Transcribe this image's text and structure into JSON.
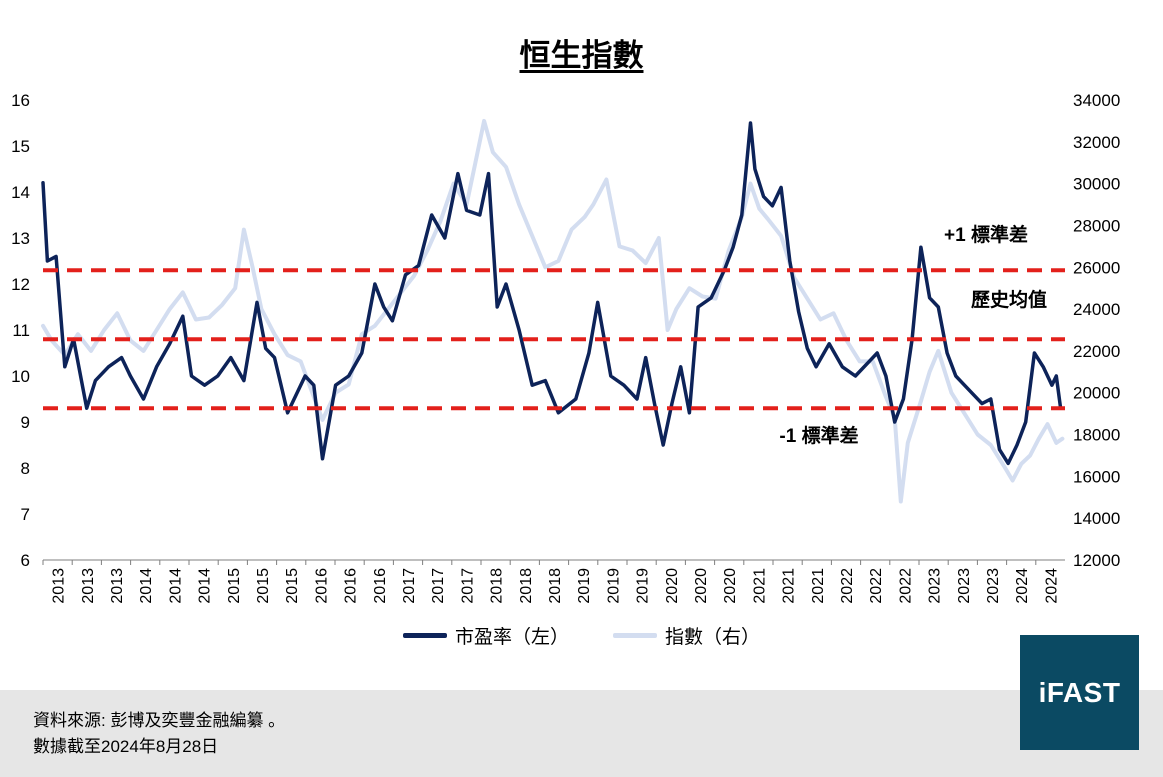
{
  "title": "恒生指數",
  "legend": {
    "pe_label": "市盈率（左）",
    "index_label": "指數（右）"
  },
  "footer": {
    "source": "資料來源: 彭博及奕豐金融編纂 。",
    "date_note": "數據截至2024年8月28日"
  },
  "logo": {
    "text": "iFAST"
  },
  "colors": {
    "pe_line": "#0d2359",
    "index_line": "#d3ddf0",
    "reference_lines": "#e3201b",
    "logo_bg": "#0b4a63"
  },
  "chart_data": {
    "type": "line",
    "title": "恒生指數",
    "x_range": [
      2013.0,
      2024.7
    ],
    "x_tick_labels": [
      "2013",
      "2013",
      "2013",
      "2014",
      "2014",
      "2014",
      "2015",
      "2015",
      "2015",
      "2016",
      "2016",
      "2016",
      "2017",
      "2017",
      "2017",
      "2018",
      "2018",
      "2018",
      "2019",
      "2019",
      "2019",
      "2020",
      "2020",
      "2020",
      "2021",
      "2021",
      "2021",
      "2022",
      "2022",
      "2022",
      "2023",
      "2023",
      "2023",
      "2024",
      "2024"
    ],
    "y_left": {
      "range": [
        6,
        16
      ],
      "ticks": [
        6,
        7,
        8,
        9,
        10,
        11,
        12,
        13,
        14,
        15,
        16
      ]
    },
    "y_right": {
      "range": [
        12000,
        34000
      ],
      "ticks": [
        12000,
        14000,
        16000,
        18000,
        20000,
        22000,
        24000,
        26000,
        28000,
        30000,
        32000,
        34000
      ]
    },
    "grid": false,
    "legend_position": "bottom",
    "reference_lines": [
      {
        "axis": "left",
        "value": 12.3,
        "label": "+1 標準差"
      },
      {
        "axis": "left",
        "value": 10.8,
        "label": "歷史均值"
      },
      {
        "axis": "left",
        "value": 9.3,
        "label": "-1 標準差"
      }
    ],
    "series": [
      {
        "name": "市盈率（左）",
        "axis": "left",
        "x": [
          2013.0,
          2013.05,
          2013.15,
          2013.25,
          2013.35,
          2013.5,
          2013.6,
          2013.75,
          2013.9,
          2014.0,
          2014.15,
          2014.3,
          2014.45,
          2014.6,
          2014.7,
          2014.85,
          2015.0,
          2015.15,
          2015.3,
          2015.45,
          2015.55,
          2015.65,
          2015.8,
          2016.0,
          2016.1,
          2016.2,
          2016.35,
          2016.5,
          2016.65,
          2016.8,
          2016.9,
          2017.0,
          2017.15,
          2017.3,
          2017.45,
          2017.6,
          2017.75,
          2017.85,
          2018.0,
          2018.1,
          2018.2,
          2018.3,
          2018.45,
          2018.6,
          2018.75,
          2018.9,
          2019.1,
          2019.25,
          2019.35,
          2019.5,
          2019.65,
          2019.8,
          2019.9,
          2020.0,
          2020.1,
          2020.2,
          2020.3,
          2020.4,
          2020.5,
          2020.65,
          2020.8,
          2020.9,
          2021.0,
          2021.1,
          2021.15,
          2021.25,
          2021.35,
          2021.45,
          2021.55,
          2021.65,
          2021.75,
          2021.85,
          2022.0,
          2022.15,
          2022.3,
          2022.45,
          2022.55,
          2022.65,
          2022.75,
          2022.85,
          2022.95,
          2023.05,
          2023.15,
          2023.25,
          2023.35,
          2023.45,
          2023.55,
          2023.65,
          2023.75,
          2023.85,
          2023.95,
          2024.05,
          2024.15,
          2024.25,
          2024.35,
          2024.45,
          2024.55,
          2024.6,
          2024.65
        ],
        "y": [
          14.2,
          12.5,
          12.6,
          10.2,
          10.8,
          9.3,
          9.9,
          10.2,
          10.4,
          10.0,
          9.5,
          10.2,
          10.7,
          11.3,
          10.0,
          9.8,
          10.0,
          10.4,
          9.9,
          11.6,
          10.6,
          10.4,
          9.2,
          10.0,
          9.8,
          8.2,
          9.8,
          10.0,
          10.5,
          12.0,
          11.5,
          11.2,
          12.2,
          12.4,
          13.5,
          13.0,
          14.4,
          13.6,
          13.5,
          14.4,
          11.5,
          12.0,
          11.0,
          9.8,
          9.9,
          9.2,
          9.5,
          10.5,
          11.6,
          10.0,
          9.8,
          9.5,
          10.4,
          9.4,
          8.5,
          9.4,
          10.2,
          9.2,
          11.5,
          11.7,
          12.3,
          12.8,
          13.5,
          15.5,
          14.5,
          13.9,
          13.7,
          14.1,
          12.5,
          11.4,
          10.6,
          10.2,
          10.7,
          10.2,
          10.0,
          10.3,
          10.5,
          10.0,
          9.0,
          9.5,
          10.8,
          12.8,
          11.7,
          11.5,
          10.5,
          10.0,
          9.8,
          9.6,
          9.4,
          9.5,
          8.4,
          8.1,
          8.5,
          9.0,
          10.5,
          10.2,
          9.8,
          10.0,
          9.3
        ],
        "color": "#0d2359"
      },
      {
        "name": "指數（右）",
        "axis": "right",
        "x": [
          2013.0,
          2013.1,
          2013.25,
          2013.4,
          2013.55,
          2013.7,
          2013.85,
          2014.0,
          2014.15,
          2014.3,
          2014.45,
          2014.6,
          2014.75,
          2014.9,
          2015.05,
          2015.2,
          2015.3,
          2015.4,
          2015.5,
          2015.65,
          2015.8,
          2015.95,
          2016.1,
          2016.2,
          2016.35,
          2016.5,
          2016.65,
          2016.8,
          2016.95,
          2017.1,
          2017.25,
          2017.4,
          2017.55,
          2017.7,
          2017.85,
          2017.95,
          2018.05,
          2018.15,
          2018.3,
          2018.45,
          2018.6,
          2018.75,
          2018.9,
          2019.05,
          2019.2,
          2019.3,
          2019.45,
          2019.6,
          2019.75,
          2019.9,
          2020.05,
          2020.15,
          2020.25,
          2020.4,
          2020.55,
          2020.7,
          2020.85,
          2021.0,
          2021.1,
          2021.2,
          2021.3,
          2021.45,
          2021.6,
          2021.75,
          2021.9,
          2022.05,
          2022.2,
          2022.35,
          2022.5,
          2022.65,
          2022.75,
          2022.82,
          2022.9,
          2023.05,
          2023.15,
          2023.25,
          2023.4,
          2023.55,
          2023.7,
          2023.85,
          2024.0,
          2024.1,
          2024.2,
          2024.3,
          2024.4,
          2024.5,
          2024.6,
          2024.67
        ],
        "y": [
          23200,
          22500,
          21800,
          22800,
          22000,
          23000,
          23800,
          22500,
          22000,
          23000,
          24000,
          24800,
          23500,
          23600,
          24200,
          25000,
          27800,
          26000,
          24000,
          22800,
          21800,
          21500,
          19800,
          18700,
          20000,
          20400,
          22800,
          23200,
          24000,
          24800,
          25600,
          26800,
          28200,
          30000,
          29000,
          31000,
          33000,
          31500,
          30800,
          29000,
          27500,
          26000,
          26300,
          27800,
          28400,
          29000,
          30200,
          27000,
          26800,
          26200,
          27400,
          23000,
          24000,
          25000,
          24600,
          24500,
          26800,
          28400,
          30000,
          28800,
          28300,
          27500,
          25500,
          24500,
          23500,
          23800,
          22500,
          21500,
          21500,
          19800,
          18800,
          14800,
          17600,
          19600,
          21000,
          22000,
          20000,
          19000,
          18000,
          17500,
          16500,
          15800,
          16600,
          17000,
          17800,
          18500,
          17600,
          17800
        ],
        "color": "#d3ddf0"
      }
    ]
  }
}
